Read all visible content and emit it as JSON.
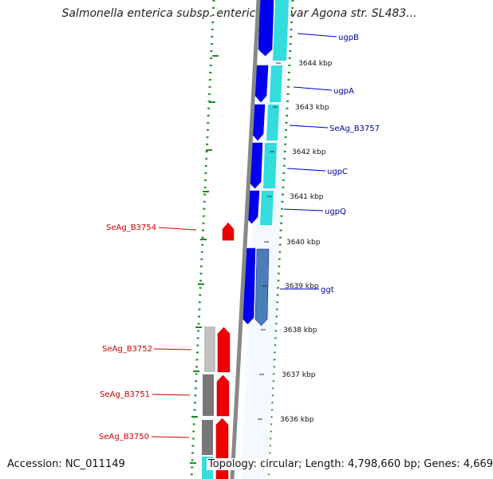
{
  "header": {
    "title": "Salmonella enterica subsp. enterica serovar Agona str. SL483..."
  },
  "footer": {
    "accession": "Accession: NC_011149",
    "summary": "Topology: circular; Length: 4,798,660 bp; Genes: 4,669"
  },
  "colors": {
    "forward_gene": "#0000ee",
    "forward_gene_alt": "#4a7fb5",
    "reverse_gene": "#ee0000",
    "label_forward": "#000099",
    "label_reverse": "#cc0000",
    "backbone": "#888888",
    "gc_skew_dots": "#228b22",
    "cds_cyan": "#33dddd",
    "cds_gray": "#777777"
  },
  "scale_labels": [
    {
      "text": "3644 kbp"
    },
    {
      "text": "3643 kbp"
    },
    {
      "text": "3642 kbp"
    },
    {
      "text": "3641 kbp"
    },
    {
      "text": "3640 kbp"
    },
    {
      "text": "3639 kbp"
    },
    {
      "text": "3638 kbp"
    },
    {
      "text": "3637 kbp"
    },
    {
      "text": "3636 kbp"
    }
  ],
  "gene_labels": [
    {
      "text": "ugpB",
      "strand": "forward"
    },
    {
      "text": "ugpA",
      "strand": "forward"
    },
    {
      "text": "SeAg_B3757",
      "strand": "forward"
    },
    {
      "text": "ugpC",
      "strand": "forward"
    },
    {
      "text": "ugpQ",
      "strand": "forward"
    },
    {
      "text": "ggt",
      "strand": "forward"
    },
    {
      "text": "SeAg_B3754",
      "strand": "reverse"
    },
    {
      "text": "SeAg_B3752",
      "strand": "reverse"
    },
    {
      "text": "SeAg_B3751",
      "strand": "reverse"
    },
    {
      "text": "SeAg_B3750",
      "strand": "reverse"
    }
  ]
}
